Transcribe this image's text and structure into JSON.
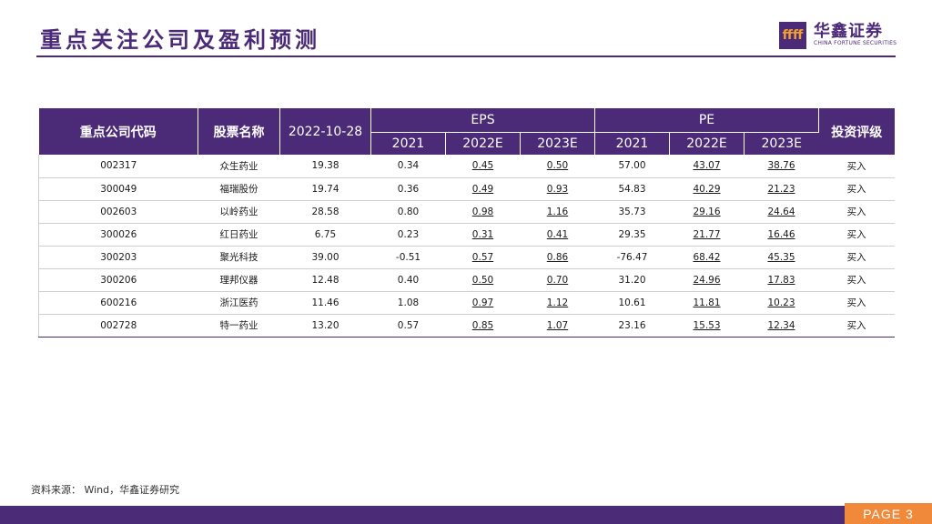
{
  "title": "重点关注公司及盈利预测",
  "logo": {
    "mark": "ffff",
    "cn": "华鑫证券",
    "en": "CHINA FORTUNE SECURITIES"
  },
  "table": {
    "headers": {
      "code": "重点公司代码",
      "name": "股票名称",
      "date": "2022-10-28",
      "eps": "EPS",
      "pe": "PE",
      "rating": "投资评级",
      "years": [
        "2021",
        "2022E",
        "2023E"
      ]
    },
    "rows": [
      {
        "code": "002317",
        "name": "众生药业",
        "price": "19.38",
        "eps": [
          "0.34",
          "0.45",
          "0.50"
        ],
        "pe": [
          "57.00",
          "43.07",
          "38.76"
        ],
        "rating": "买入"
      },
      {
        "code": "300049",
        "name": "福瑞股份",
        "price": "19.74",
        "eps": [
          "0.36",
          "0.49",
          "0.93"
        ],
        "pe": [
          "54.83",
          "40.29",
          "21.23"
        ],
        "rating": "买入"
      },
      {
        "code": "002603",
        "name": "以岭药业",
        "price": "28.58",
        "eps": [
          "0.80",
          "0.98",
          "1.16"
        ],
        "pe": [
          "35.73",
          "29.16",
          "24.64"
        ],
        "rating": "买入"
      },
      {
        "code": "300026",
        "name": "红日药业",
        "price": "6.75",
        "eps": [
          "0.23",
          "0.31",
          "0.41"
        ],
        "pe": [
          "29.35",
          "21.77",
          "16.46"
        ],
        "rating": "买入"
      },
      {
        "code": "300203",
        "name": "聚光科技",
        "price": "39.00",
        "eps": [
          "-0.51",
          "0.57",
          "0.86"
        ],
        "pe": [
          "-76.47",
          "68.42",
          "45.35"
        ],
        "rating": "买入"
      },
      {
        "code": "300206",
        "name": "理邦仪器",
        "price": "12.48",
        "eps": [
          "0.40",
          "0.50",
          "0.70"
        ],
        "pe": [
          "31.20",
          "24.96",
          "17.83"
        ],
        "rating": "买入"
      },
      {
        "code": "600216",
        "name": "浙江医药",
        "price": "11.46",
        "eps": [
          "1.08",
          "0.97",
          "1.12"
        ],
        "pe": [
          "10.61",
          "11.81",
          "10.23"
        ],
        "rating": "买入"
      },
      {
        "code": "002728",
        "name": "特一药业",
        "price": "13.20",
        "eps": [
          "0.57",
          "0.85",
          "1.07"
        ],
        "pe": [
          "23.16",
          "15.53",
          "12.34"
        ],
        "rating": "买入"
      }
    ]
  },
  "source": "资料来源： Wind，华鑫证券研究",
  "page": "PAGE 3",
  "colors": {
    "brand": "#4b2a78",
    "accent": "#f08a3a"
  }
}
